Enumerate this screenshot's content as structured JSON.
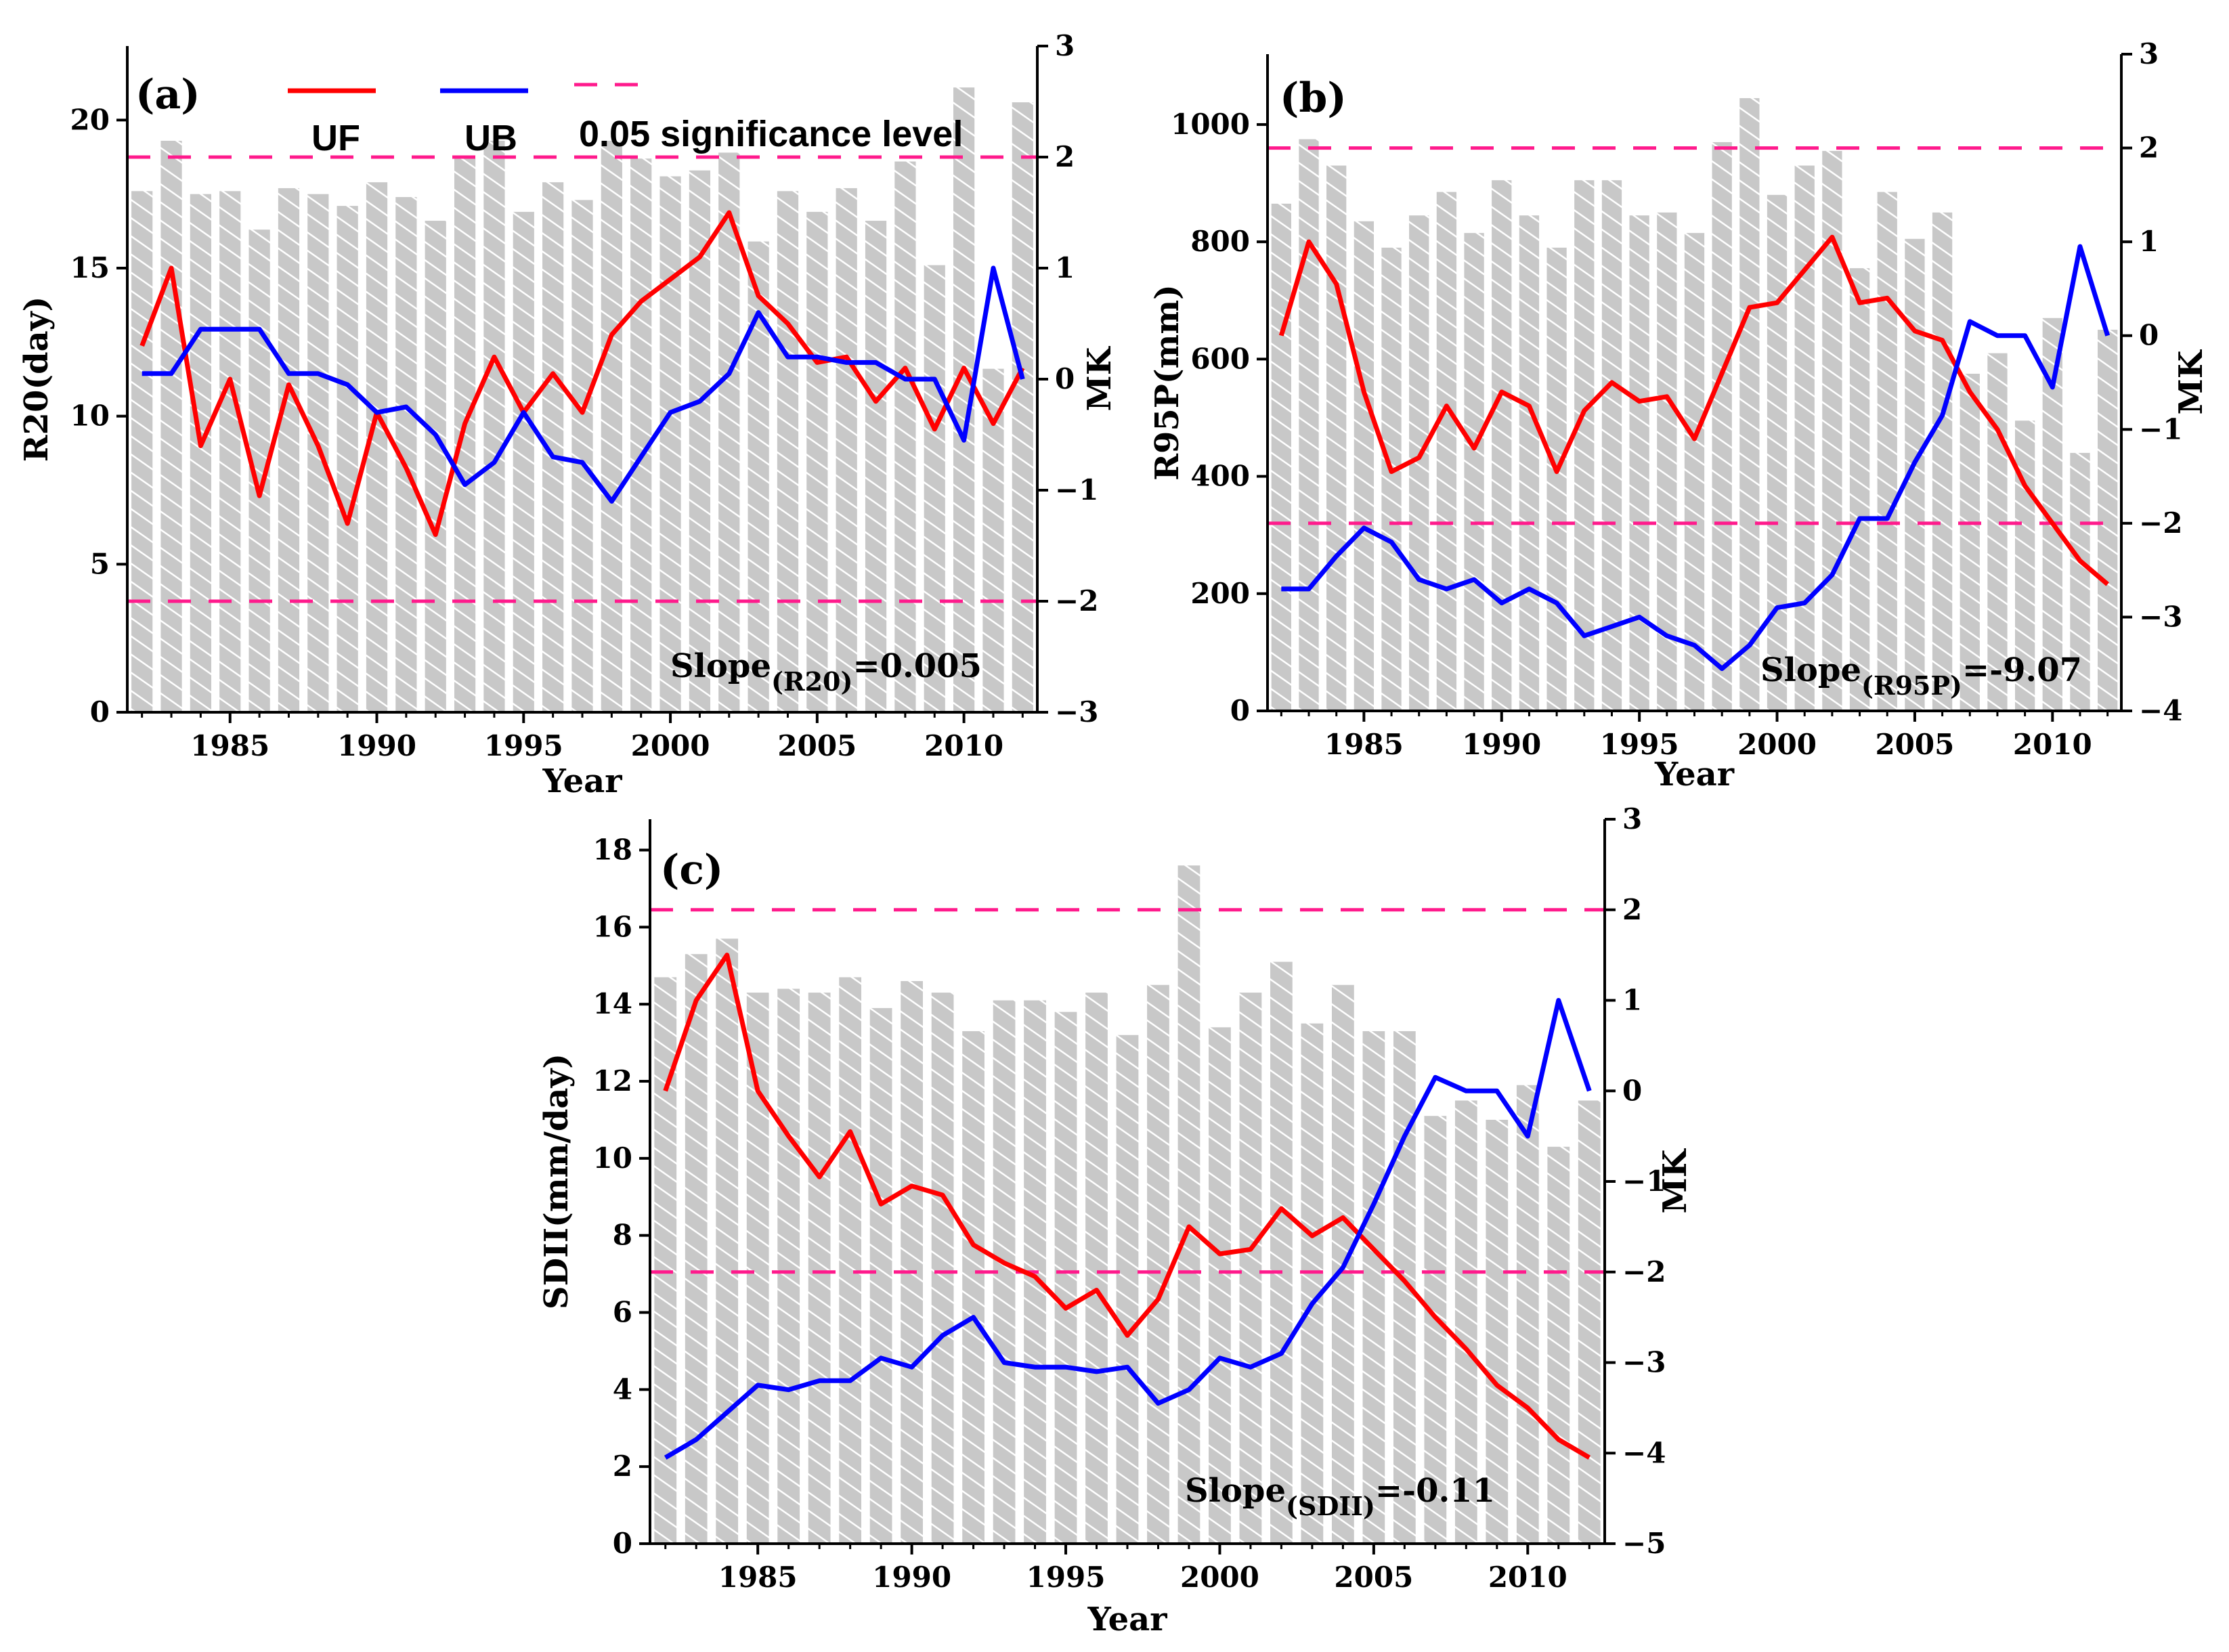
{
  "figure": {
    "legend": {
      "uf_label": "UF",
      "ub_label": "UB",
      "sig_label": "0.05 significance level"
    },
    "colors": {
      "uf": "#ff0000",
      "ub": "#0000ff",
      "sig": "#ff1a8c",
      "bar": "#c8c8c8",
      "hatch": "#ffffff"
    }
  },
  "chart_data": [
    {
      "id": "a",
      "type": "bar+line",
      "panel_label": "(a)",
      "xlabel": "Year",
      "ylabel": "R20(day)",
      "y2label": "MK",
      "x_range": [
        1981.5,
        2012.5
      ],
      "x_ticks": [
        1985,
        1990,
        1995,
        2000,
        2005,
        2010
      ],
      "ylim": [
        0,
        22.5
      ],
      "y_ticks": [
        0,
        5,
        10,
        15,
        20
      ],
      "y2lim": [
        -3,
        3
      ],
      "y2_ticks": [
        -3,
        -2,
        -1,
        0,
        1,
        2,
        3
      ],
      "sig_levels": [
        2,
        -2
      ],
      "slope_prefix": "Slope",
      "slope_sub": "(R20)",
      "slope_value": "=0.005",
      "years": [
        1982,
        1983,
        1984,
        1985,
        1986,
        1987,
        1988,
        1989,
        1990,
        1991,
        1992,
        1993,
        1994,
        1995,
        1996,
        1997,
        1998,
        1999,
        2000,
        2001,
        2002,
        2003,
        2004,
        2005,
        2006,
        2007,
        2008,
        2009,
        2010,
        2011,
        2012
      ],
      "bars": [
        17.6,
        19.3,
        17.5,
        17.6,
        16.3,
        17.7,
        17.5,
        17.1,
        17.9,
        17.4,
        16.6,
        18.7,
        19.3,
        16.9,
        17.9,
        17.3,
        19.3,
        18.7,
        18.1,
        18.3,
        18.9,
        15.9,
        17.6,
        16.9,
        17.7,
        16.6,
        18.6,
        15.1,
        21.1,
        11.6,
        20.6
      ],
      "uf": [
        0.3,
        1.0,
        -0.6,
        0.0,
        -1.05,
        -0.05,
        -0.6,
        -1.3,
        -0.3,
        -0.8,
        -1.4,
        -0.4,
        0.2,
        -0.3,
        0.05,
        -0.3,
        0.4,
        0.7,
        0.9,
        1.1,
        1.5,
        0.75,
        0.5,
        0.15,
        0.2,
        -0.2,
        0.1,
        -0.45,
        0.1,
        -0.4,
        0.1
      ],
      "ub": [
        0.05,
        0.05,
        0.45,
        0.45,
        0.45,
        0.05,
        0.05,
        -0.05,
        -0.3,
        -0.25,
        -0.5,
        -0.95,
        -0.75,
        -0.3,
        -0.7,
        -0.75,
        -1.1,
        -0.7,
        -0.3,
        -0.2,
        0.05,
        0.6,
        0.2,
        0.2,
        0.15,
        0.15,
        0.0,
        0.0,
        -0.55,
        1.0,
        0.0
      ]
    },
    {
      "id": "b",
      "type": "bar+line",
      "panel_label": "(b)",
      "xlabel": "Year",
      "ylabel": "R95P(mm)",
      "y2label": "MK",
      "x_range": [
        1981.5,
        2012.5
      ],
      "x_ticks": [
        1985,
        1990,
        1995,
        2000,
        2005,
        2010
      ],
      "ylim": [
        0,
        1120
      ],
      "y_ticks": [
        0,
        200,
        400,
        600,
        800,
        1000
      ],
      "y2lim": [
        -4,
        3
      ],
      "y2_ticks": [
        -4,
        -3,
        -2,
        -1,
        0,
        1,
        2,
        3
      ],
      "sig_levels": [
        2,
        -2
      ],
      "slope_prefix": "Slope",
      "slope_sub": "(R95P)",
      "slope_value": "=-9.07",
      "years": [
        1982,
        1983,
        1984,
        1985,
        1986,
        1987,
        1988,
        1989,
        1990,
        1991,
        1992,
        1993,
        1994,
        1995,
        1996,
        1997,
        1998,
        1999,
        2000,
        2001,
        2002,
        2003,
        2004,
        2005,
        2006,
        2007,
        2008,
        2009,
        2010,
        2011,
        2012
      ],
      "bars": [
        865,
        975,
        930,
        835,
        790,
        845,
        885,
        815,
        905,
        845,
        790,
        905,
        905,
        845,
        850,
        815,
        970,
        1045,
        880,
        930,
        955,
        755,
        885,
        805,
        850,
        575,
        610,
        495,
        670,
        440,
        650
      ],
      "uf": [
        0.0,
        1.0,
        0.55,
        -0.6,
        -1.45,
        -1.3,
        -0.75,
        -1.2,
        -0.6,
        -0.75,
        -1.45,
        -0.8,
        -0.5,
        -0.7,
        -0.65,
        -1.1,
        -0.4,
        0.3,
        0.35,
        0.7,
        1.05,
        0.35,
        0.4,
        0.05,
        -0.05,
        -0.6,
        -1.0,
        -1.6,
        -2.0,
        -2.4,
        -2.65
      ],
      "ub": [
        -2.7,
        -2.7,
        -2.35,
        -2.05,
        -2.2,
        -2.6,
        -2.7,
        -2.6,
        -2.85,
        -2.7,
        -2.85,
        -3.2,
        -3.1,
        -3.0,
        -3.2,
        -3.3,
        -3.55,
        -3.3,
        -2.9,
        -2.85,
        -2.55,
        -1.95,
        -1.95,
        -1.35,
        -0.85,
        0.15,
        0.0,
        0.0,
        -0.55,
        0.95,
        0.0
      ]
    },
    {
      "id": "c",
      "type": "bar+line",
      "panel_label": "(c)",
      "xlabel": "Year",
      "ylabel": "SDII(mm/day)",
      "y2label": "MK",
      "x_range": [
        1981.5,
        2012.5
      ],
      "x_ticks": [
        1985,
        1990,
        1995,
        2000,
        2005,
        2010
      ],
      "ylim": [
        0,
        18.8
      ],
      "y_ticks": [
        0,
        2,
        4,
        6,
        8,
        10,
        12,
        14,
        16,
        18
      ],
      "y2lim": [
        -5,
        3
      ],
      "y2_ticks": [
        -5,
        -4,
        -3,
        -2,
        -1,
        0,
        1,
        2,
        3
      ],
      "sig_levels": [
        2,
        -2
      ],
      "slope_prefix": "Slope",
      "slope_sub": "(SDII)",
      "slope_value": "=-0.11",
      "years": [
        1982,
        1983,
        1984,
        1985,
        1986,
        1987,
        1988,
        1989,
        1990,
        1991,
        1992,
        1993,
        1994,
        1995,
        1996,
        1997,
        1998,
        1999,
        2000,
        2001,
        2002,
        2003,
        2004,
        2005,
        2006,
        2007,
        2008,
        2009,
        2010,
        2011,
        2012
      ],
      "bars": [
        14.7,
        15.3,
        15.7,
        14.3,
        14.4,
        14.3,
        14.7,
        13.9,
        14.6,
        14.3,
        13.3,
        14.1,
        14.1,
        13.8,
        14.3,
        13.2,
        14.5,
        17.6,
        13.4,
        14.3,
        15.1,
        13.5,
        14.5,
        13.3,
        13.3,
        11.1,
        11.5,
        11.0,
        11.9,
        10.3,
        11.5
      ],
      "uf": [
        0.0,
        1.0,
        1.5,
        0.0,
        -0.5,
        -0.95,
        -0.45,
        -1.25,
        -1.05,
        -1.15,
        -1.7,
        -1.9,
        -2.05,
        -2.4,
        -2.2,
        -2.7,
        -2.3,
        -1.5,
        -1.8,
        -1.75,
        -1.3,
        -1.6,
        -1.4,
        -1.75,
        -2.1,
        -2.5,
        -2.85,
        -3.25,
        -3.5,
        -3.85,
        -4.05
      ],
      "ub": [
        -4.05,
        -3.85,
        -3.55,
        -3.25,
        -3.3,
        -3.2,
        -3.2,
        -2.95,
        -3.05,
        -2.7,
        -2.5,
        -3.0,
        -3.05,
        -3.05,
        -3.1,
        -3.05,
        -3.45,
        -3.3,
        -2.95,
        -3.05,
        -2.9,
        -2.35,
        -1.95,
        -1.25,
        -0.5,
        0.15,
        0.0,
        0.0,
        -0.5,
        1.0,
        0.0
      ]
    }
  ]
}
